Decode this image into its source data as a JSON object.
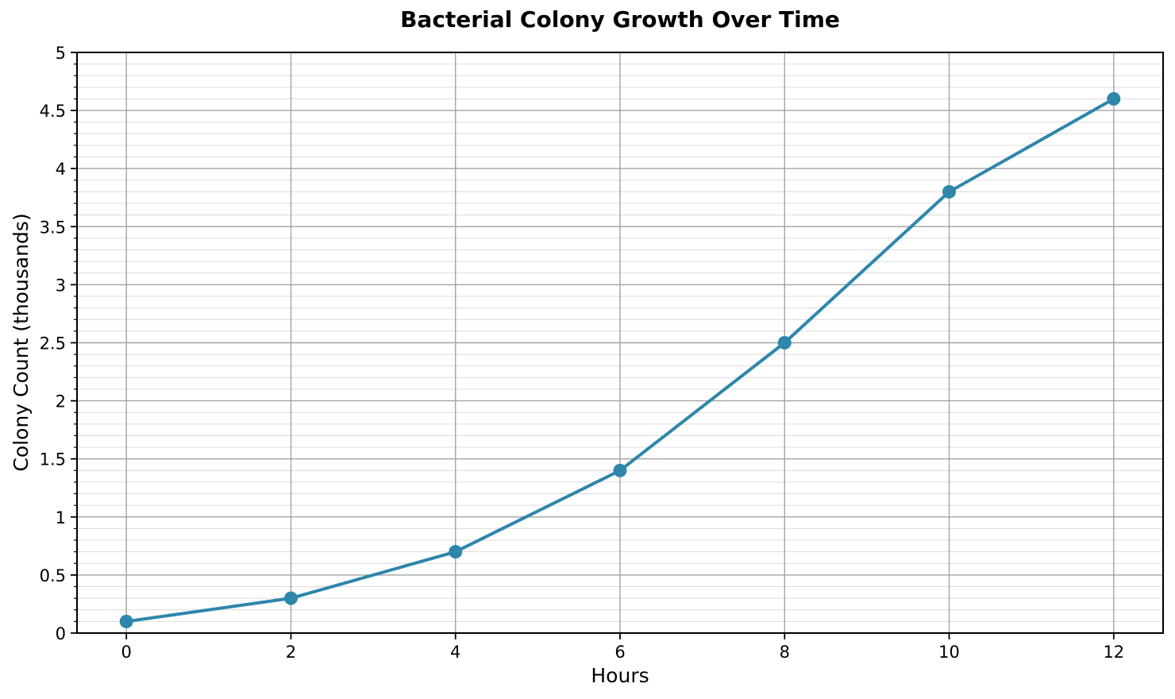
{
  "chart_data": {
    "type": "line",
    "title": "Bacterial Colony Growth Over Time",
    "xlabel": "Hours",
    "ylabel": "Colony Count (thousands)",
    "x": [
      0,
      2,
      4,
      6,
      8,
      10,
      12
    ],
    "y": [
      0.1,
      0.3,
      0.7,
      1.4,
      2.5,
      3.8,
      4.6
    ],
    "xlim": [
      -0.6,
      12.6
    ],
    "ylim": [
      0,
      5
    ],
    "x_tick_values": [
      0,
      2,
      4,
      6,
      8,
      10,
      12
    ],
    "x_tick_labels": [
      "0",
      "2",
      "4",
      "6",
      "8",
      "10",
      "12"
    ],
    "y_tick_values": [
      0,
      0.5,
      1,
      1.5,
      2,
      2.5,
      3,
      3.5,
      4,
      4.5,
      5
    ],
    "y_tick_labels": [
      "0",
      "0.5",
      "1",
      "1.5",
      "2",
      "2.5",
      "3",
      "3.5",
      "4",
      "4.5",
      "5"
    ],
    "y_minor_step": 0.1,
    "grid": {
      "major": true,
      "minor_horizontal": true,
      "minor_vertical": false
    },
    "legend_position": "none",
    "marker": "circle",
    "colors": {
      "line": "#2e86ab",
      "marker": "#2e86ab",
      "grid_major": "#a3a3a3",
      "grid_minor": "#dcdcdc",
      "spine": "#000000",
      "text": "#000000"
    }
  }
}
